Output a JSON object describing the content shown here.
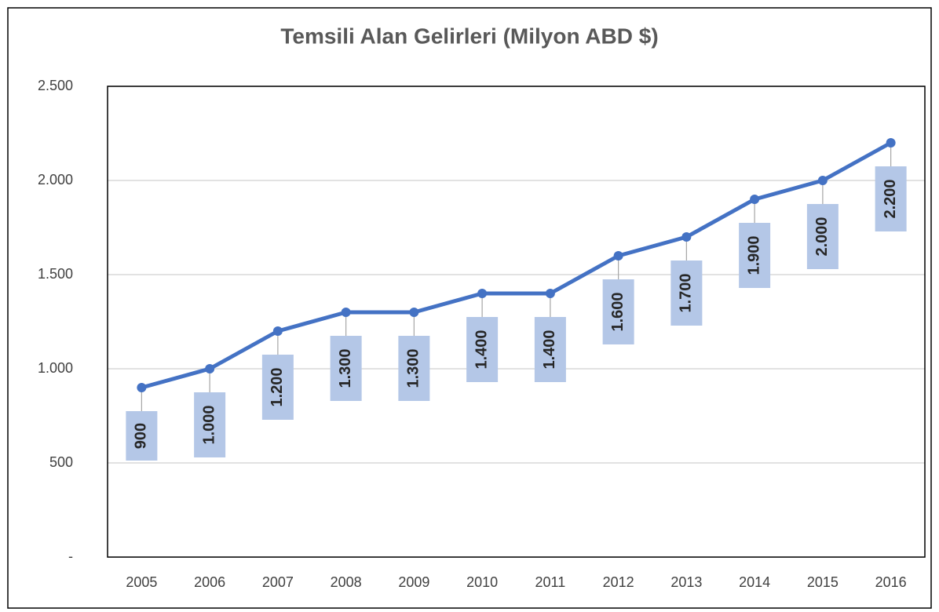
{
  "chart_data": {
    "type": "line",
    "title": "Temsili Alan Gelirleri (Milyon ABD $)",
    "categories": [
      "2005",
      "2006",
      "2007",
      "2008",
      "2009",
      "2010",
      "2011",
      "2012",
      "2013",
      "2014",
      "2015",
      "2016"
    ],
    "series": [
      {
        "name": "Temsili Alan Gelirleri",
        "color": "#4472c4",
        "values": [
          900,
          1000,
          1200,
          1300,
          1300,
          1400,
          1400,
          1600,
          1700,
          1900,
          2000,
          2200
        ],
        "value_labels": [
          "900",
          "1.000",
          "1.200",
          "1.300",
          "1.300",
          "1.400",
          "1.400",
          "1.600",
          "1.700",
          "1.900",
          "2.000",
          "2.200"
        ]
      }
    ],
    "ylim": [
      0,
      2500
    ],
    "yticks": [
      {
        "value": 0,
        "label": "-"
      },
      500,
      {
        "value": 1000,
        "label": "1.000"
      },
      {
        "value": 1500,
        "label": "1.500"
      },
      {
        "value": 2000,
        "label": "2.000"
      },
      {
        "value": 2500,
        "label": "2.500"
      }
    ],
    "grid": true
  }
}
